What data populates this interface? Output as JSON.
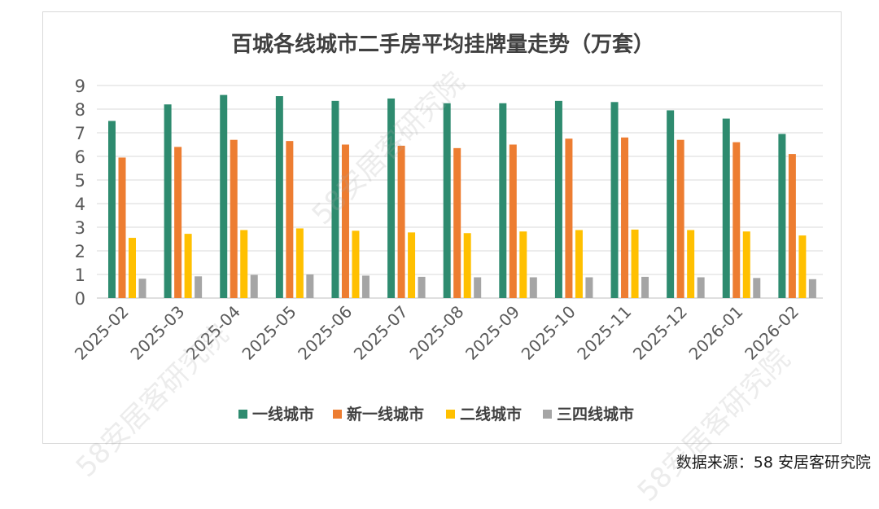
{
  "chart_data": {
    "type": "bar",
    "title": "百城各线城市二手房平均挂牌量走势（万套）",
    "categories": [
      "2025-02",
      "2025-03",
      "2025-04",
      "2025-05",
      "2025-06",
      "2025-07",
      "2025-08",
      "2025-09",
      "2025-10",
      "2025-11",
      "2025-12",
      "2026-01",
      "2026-02"
    ],
    "series": [
      {
        "name": "一线城市",
        "color": "#2e8b6f",
        "values": [
          7.5,
          8.2,
          8.6,
          8.55,
          8.35,
          8.45,
          8.25,
          8.25,
          8.35,
          8.3,
          7.95,
          7.6,
          6.95
        ]
      },
      {
        "name": "新一线城市",
        "color": "#ed7d31",
        "values": [
          5.95,
          6.4,
          6.7,
          6.65,
          6.5,
          6.45,
          6.35,
          6.5,
          6.75,
          6.8,
          6.7,
          6.6,
          6.1
        ]
      },
      {
        "name": "二线城市",
        "color": "#ffc000",
        "values": [
          2.55,
          2.72,
          2.88,
          2.95,
          2.85,
          2.78,
          2.75,
          2.82,
          2.88,
          2.9,
          2.88,
          2.82,
          2.65
        ]
      },
      {
        "name": "三四线城市",
        "color": "#a5a5a5",
        "values": [
          0.82,
          0.92,
          0.98,
          1.0,
          0.95,
          0.9,
          0.88,
          0.88,
          0.88,
          0.9,
          0.88,
          0.85,
          0.8
        ]
      }
    ],
    "yticks": [
      0,
      1,
      2,
      3,
      4,
      5,
      6,
      7,
      8,
      9
    ],
    "ylim": [
      0,
      9
    ],
    "grid": true,
    "legend_position": "bottom"
  },
  "source_text": "数据来源：58 安居客研究院",
  "watermark_text": "58安居客研究院"
}
